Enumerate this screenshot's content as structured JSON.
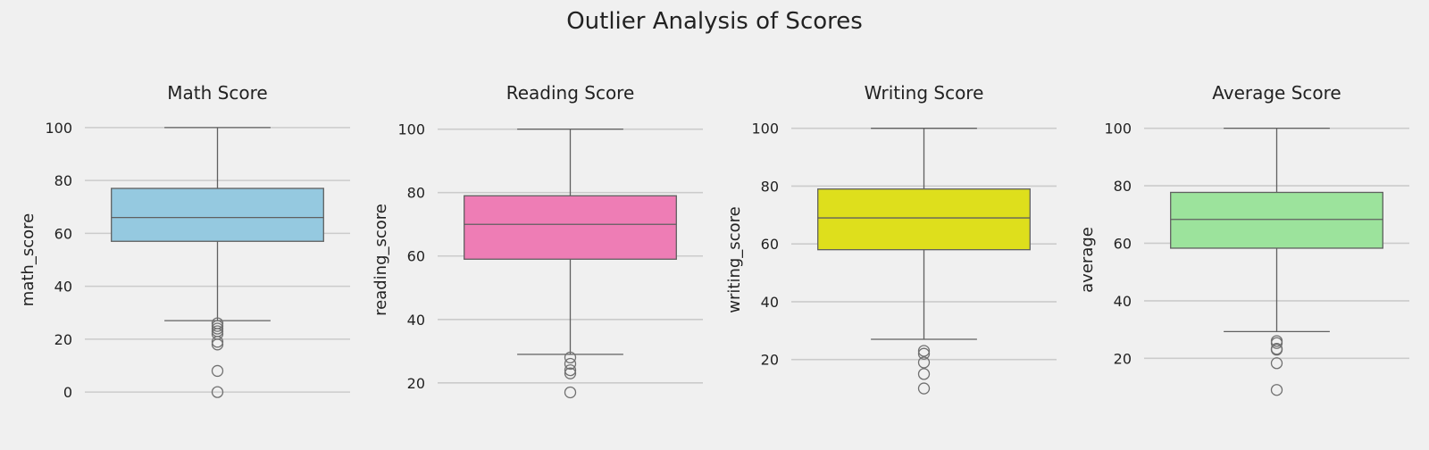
{
  "chart_data": {
    "title": "Outlier Analysis of Scores",
    "type": "box",
    "grid": true,
    "panels": [
      {
        "title": "Math Score",
        "ylabel": "math_score",
        "color": "#95c9e0",
        "ylim": [
          -3,
          103
        ],
        "yticks": [
          0,
          20,
          40,
          60,
          80,
          100
        ],
        "box": {
          "whisker_low": 27,
          "q1": 57,
          "median": 66,
          "q3": 77,
          "whisker_high": 100
        },
        "outliers": [
          26,
          25,
          24,
          23,
          22,
          19,
          18,
          8,
          0
        ]
      },
      {
        "title": "Reading Score",
        "ylabel": "reading_score",
        "color": "#ee7db5",
        "ylim": [
          14.6,
          103
        ],
        "yticks": [
          20,
          40,
          60,
          80,
          100
        ],
        "box": {
          "whisker_low": 29,
          "q1": 59,
          "median": 70,
          "q3": 79,
          "whisker_high": 100
        },
        "outliers": [
          28,
          26,
          24,
          23,
          17
        ]
      },
      {
        "title": "Writing Score",
        "ylabel": "writing_score",
        "color": "#dedf1c",
        "ylim": [
          6,
          103
        ],
        "yticks": [
          20,
          40,
          60,
          80,
          100
        ],
        "box": {
          "whisker_low": 27,
          "q1": 58,
          "median": 69,
          "q3": 79,
          "whisker_high": 100
        },
        "outliers": [
          23,
          22,
          19,
          15,
          10
        ]
      },
      {
        "title": "Average Score",
        "ylabel": "average",
        "color": "#9ce39c",
        "ylim": [
          5.5,
          103
        ],
        "yticks": [
          20,
          40,
          60,
          80,
          100
        ],
        "box": {
          "whisker_low": 29.3,
          "q1": 58.3,
          "median": 68.3,
          "q3": 77.7,
          "whisker_high": 100
        },
        "outliers": [
          26,
          25.3,
          23.3,
          23,
          18.3,
          9
        ]
      }
    ]
  }
}
